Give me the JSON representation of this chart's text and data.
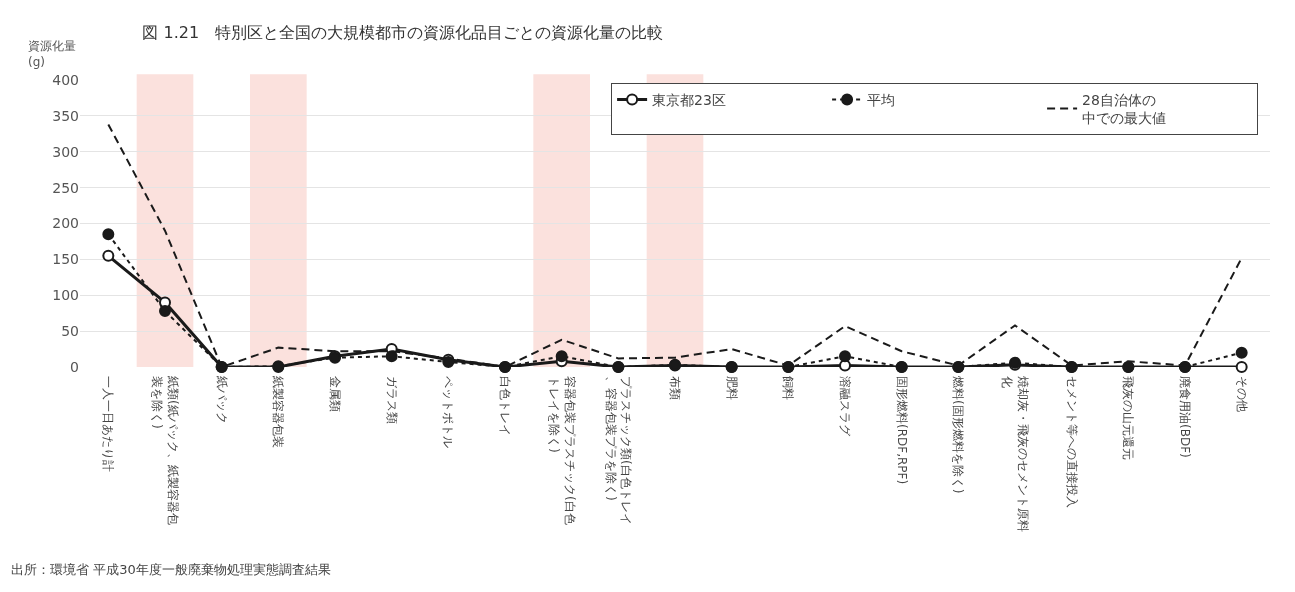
{
  "chart_data": {
    "type": "line",
    "title": "図 1.21　特別区と全国の大規模都市の資源化品目ごとの資源化量の比較",
    "ylabel": "資源化量(g)",
    "categories": [
      "一人一日あたり計",
      "紙類(紙パック、紙製容器包装を除く)",
      "紙パック",
      "紙製容器包装",
      "金属類",
      "ガラス類",
      "ペットボトル",
      "白色トレイ",
      "容器包装プラスチック(白色トレイを除く)",
      "プラスチック類(白色トレイ、容器包装プラを除く)",
      "布類",
      "肥料",
      "飼料",
      "溶融スラグ",
      "固形燃料(RDF,RPF)",
      "燃料(固形燃料を除く)",
      "焼却灰・飛灰のセメント原料化",
      "セメント等への直接投入",
      "飛灰の山元還元",
      "廃食用油(BDF)",
      "その他"
    ],
    "series": [
      {
        "name": "東京都23区",
        "color": "#1a1a1a",
        "marker": "circle-open",
        "line_style": "solid",
        "values": [
          155,
          90,
          0,
          0,
          15,
          25,
          10,
          0,
          8,
          0,
          2,
          0,
          0,
          2,
          0,
          0,
          3,
          0,
          0,
          0,
          0
        ]
      },
      {
        "name": "平均",
        "color": "#1a1a1a",
        "marker": "circle",
        "line_style": "dotted",
        "values": [
          185,
          78,
          0,
          1,
          13,
          15,
          7,
          0,
          15,
          0,
          3,
          0,
          0,
          15,
          0,
          0,
          6,
          0,
          0,
          0,
          20
        ]
      },
      {
        "name": "28自治体の中での最大値",
        "color": "#1a1a1a",
        "marker": "none",
        "line_style": "dashed",
        "values": [
          338,
          190,
          0,
          27,
          22,
          22,
          12,
          0,
          38,
          12,
          13,
          25,
          2,
          57,
          22,
          2,
          58,
          2,
          8,
          2,
          152
        ]
      }
    ],
    "bands": [
      {
        "axis": "x",
        "from": "紙類(紙パック、紙製容器包装を除く)",
        "to": "紙類(紙パック、紙製容器包装を除く)",
        "color": "#fbe1dd"
      },
      {
        "axis": "x",
        "from": "紙製容器包装",
        "to": "紙製容器包装",
        "color": "#fbe1dd"
      },
      {
        "axis": "x",
        "from": "容器包装プラスチック(白色トレイを除く)",
        "to": "容器包装プラスチック(白色トレイを除く)",
        "color": "#fbe1dd"
      },
      {
        "axis": "x",
        "from": "布類",
        "to": "布類",
        "color": "#fbe1dd"
      }
    ],
    "ylim": [
      0,
      400
    ],
    "yticks": [
      0,
      50,
      100,
      150,
      200,
      250,
      300,
      350,
      400
    ],
    "grid": "y",
    "legend": "top right",
    "annotations": [
      "出所：環境省 平成30年度一般廃棄物処理実態調査結果"
    ]
  }
}
